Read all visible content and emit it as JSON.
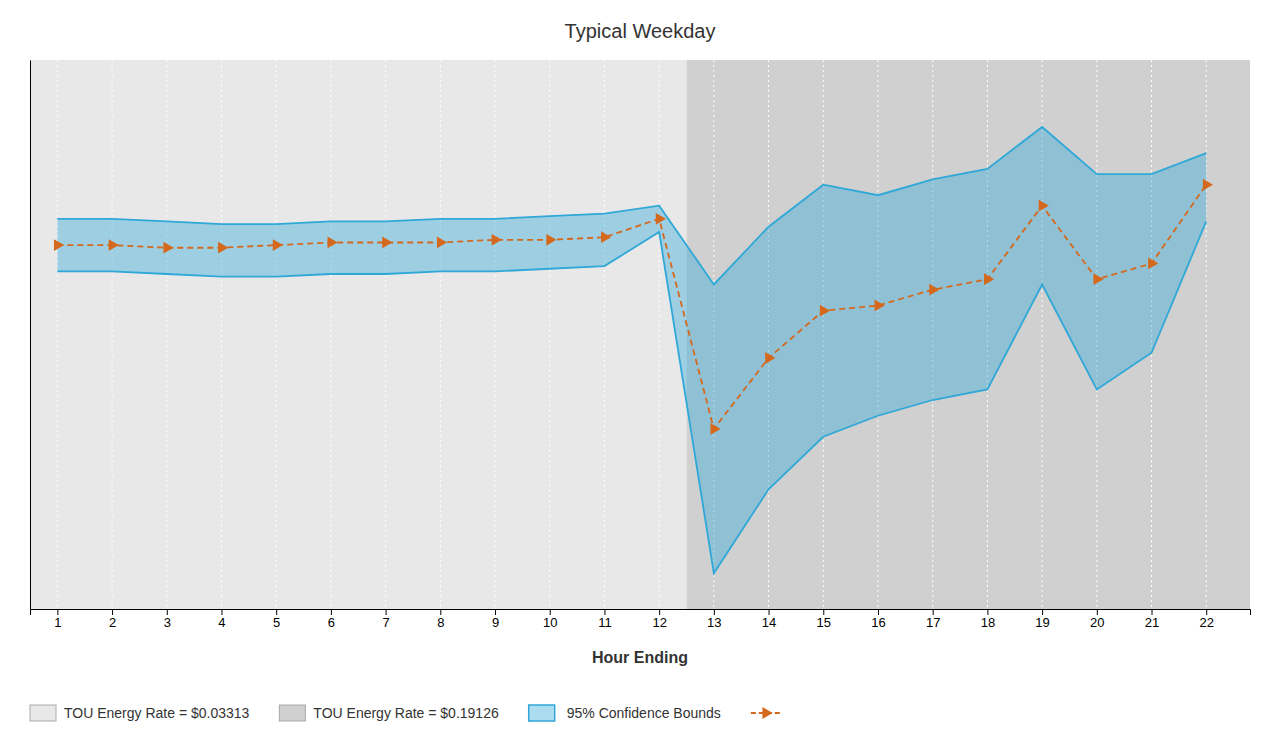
{
  "chart_data": {
    "type": "line",
    "title": "Typical Weekday",
    "xlabel": "Hour Ending",
    "x": [
      1,
      2,
      3,
      4,
      5,
      6,
      7,
      8,
      9,
      10,
      11,
      12,
      13,
      14,
      15,
      16,
      17,
      18,
      19,
      20,
      21,
      22
    ],
    "xlim": [
      0.5,
      22.8
    ],
    "xticks": [
      1,
      2,
      3,
      4,
      5,
      6,
      7,
      8,
      9,
      10,
      11,
      12,
      13,
      14,
      15,
      16,
      17,
      18,
      19,
      20,
      21,
      22
    ],
    "ylim": [
      -0.1436,
      0.0655
    ],
    "tick_labels": "x",
    "grid": true,
    "legend": "bottom",
    "regions": [
      {
        "name": "TOU Energy Rate = $0.03313",
        "color": "#e8e8e8",
        "x0": 0.5,
        "x1": 12.5
      },
      {
        "name": "TOU Energy Rate = $0.19126",
        "color": "#d0d0d0",
        "x0": 12.5,
        "x1": 22.8
      }
    ],
    "series": [
      {
        "name": "95% Confidence Bounds",
        "type": "band",
        "color": "#2fa8d8",
        "lower": [
          -0.015,
          -0.015,
          -0.016,
          -0.017,
          -0.017,
          -0.016,
          -0.016,
          -0.015,
          -0.015,
          -0.014,
          -0.013,
          0.0,
          -0.13,
          -0.098,
          -0.078,
          -0.07,
          -0.064,
          -0.06,
          -0.02,
          -0.06,
          -0.046,
          0.004
        ],
        "upper": [
          0.005,
          0.005,
          0.004,
          0.003,
          0.003,
          0.004,
          0.004,
          0.005,
          0.005,
          0.006,
          0.007,
          0.01,
          -0.02,
          0.002,
          0.018,
          0.014,
          0.02,
          0.024,
          0.04,
          0.022,
          0.022,
          0.03
        ]
      },
      {
        "type": "line",
        "color": "#d4691e",
        "line_style": "dashed",
        "marker": "triangle-right",
        "values": [
          -0.005,
          -0.005,
          -0.006,
          -0.006,
          -0.005,
          -0.004,
          -0.004,
          -0.004,
          -0.003,
          -0.003,
          -0.002,
          0.005,
          -0.075,
          -0.048,
          -0.03,
          -0.028,
          -0.022,
          -0.018,
          0.01,
          -0.018,
          -0.012,
          0.018
        ]
      }
    ]
  }
}
